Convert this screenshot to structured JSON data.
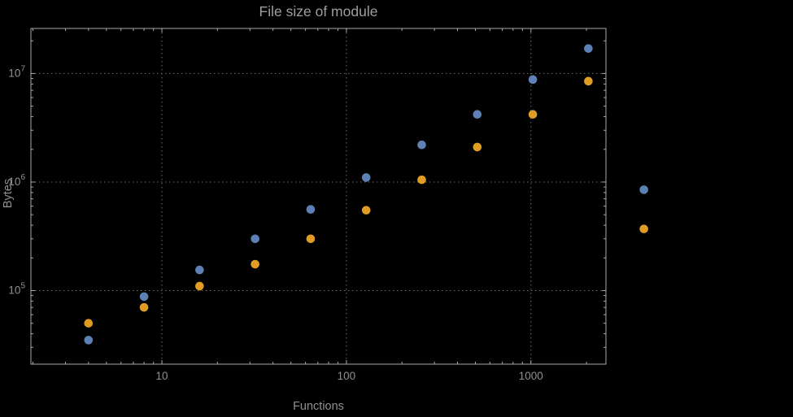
{
  "chart_data": {
    "type": "scatter",
    "title": "File size of module",
    "xlabel": "Functions",
    "ylabel": "Bytes",
    "x_scale": "log",
    "y_scale": "log",
    "xlim": [
      1.95,
      2550
    ],
    "ylim": [
      21000,
      26000000
    ],
    "x_major_ticks": [
      10,
      100,
      1000
    ],
    "x_tick_labels": [
      "10",
      "100",
      "1000"
    ],
    "y_major_ticks": [
      100000,
      1000000,
      10000000
    ],
    "y_tick_base": "10",
    "y_tick_exponents": [
      5,
      6,
      7
    ],
    "grid": "dotted",
    "legend": "none",
    "x": [
      4,
      8,
      16,
      32,
      64,
      128,
      256,
      512,
      1024,
      2048,
      4096
    ],
    "series": [
      {
        "name": "blue",
        "color": "#5e81b5",
        "values": [
          35000,
          88000,
          155000,
          300000,
          560000,
          1100000,
          2200000,
          4200000,
          8800000,
          17000000,
          850000
        ]
      },
      {
        "name": "orange",
        "color": "#e19c24",
        "values": [
          50000,
          70000,
          110000,
          175000,
          300000,
          550000,
          1050000,
          2100000,
          4200000,
          8500000,
          370000
        ]
      }
    ],
    "colors": {
      "background": "#000000",
      "frame": "#a9a9a9",
      "grid": "#6e6e6e",
      "tick_text": "#909090",
      "title_text": "#9e9e9e"
    }
  }
}
